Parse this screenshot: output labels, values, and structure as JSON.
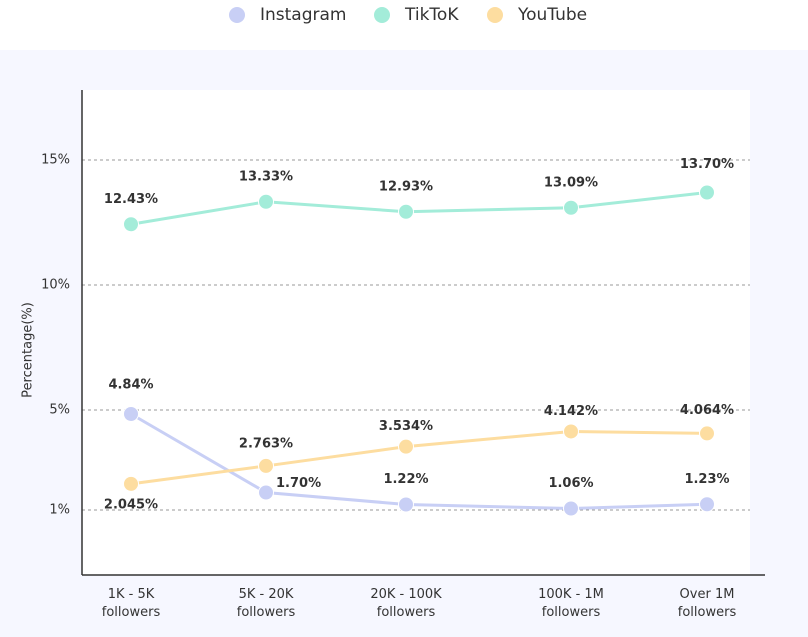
{
  "chart_data": {
    "type": "line",
    "categories": [
      "1K - 5K followers",
      "5K - 20K followers",
      "20K - 100K followers",
      "100K - 1M followers",
      "Over 1M followers"
    ],
    "series": [
      {
        "name": "Instagram",
        "color": "#c8cff5",
        "values": [
          4.84,
          1.7,
          1.22,
          1.06,
          1.23
        ],
        "value_labels": [
          "4.84%",
          "1.70%",
          "1.22%",
          "1.06%",
          "1.23%"
        ]
      },
      {
        "name": "TikToK",
        "color": "#a3ecd9",
        "values": [
          12.43,
          13.33,
          12.93,
          13.09,
          13.7
        ],
        "value_labels": [
          "12.43%",
          "13.33%",
          "12.93%",
          "13.09%",
          "13.70%"
        ]
      },
      {
        "name": "YouTube",
        "color": "#fddda0",
        "values": [
          2.045,
          2.763,
          3.534,
          4.142,
          4.064
        ],
        "value_labels": [
          "2.045%",
          "2.763%",
          "3.534%",
          "4.142%",
          "4.064%"
        ]
      }
    ],
    "ylabel": "Percentage(%)",
    "ylim": [
      -1.6,
      17.8
    ],
    "yticks": [
      {
        "value": 1,
        "label": "1%"
      },
      {
        "value": 5,
        "label": "5%"
      },
      {
        "value": 10,
        "label": "10%"
      },
      {
        "value": 15,
        "label": "15%"
      }
    ],
    "grid": true,
    "legend": "top"
  }
}
